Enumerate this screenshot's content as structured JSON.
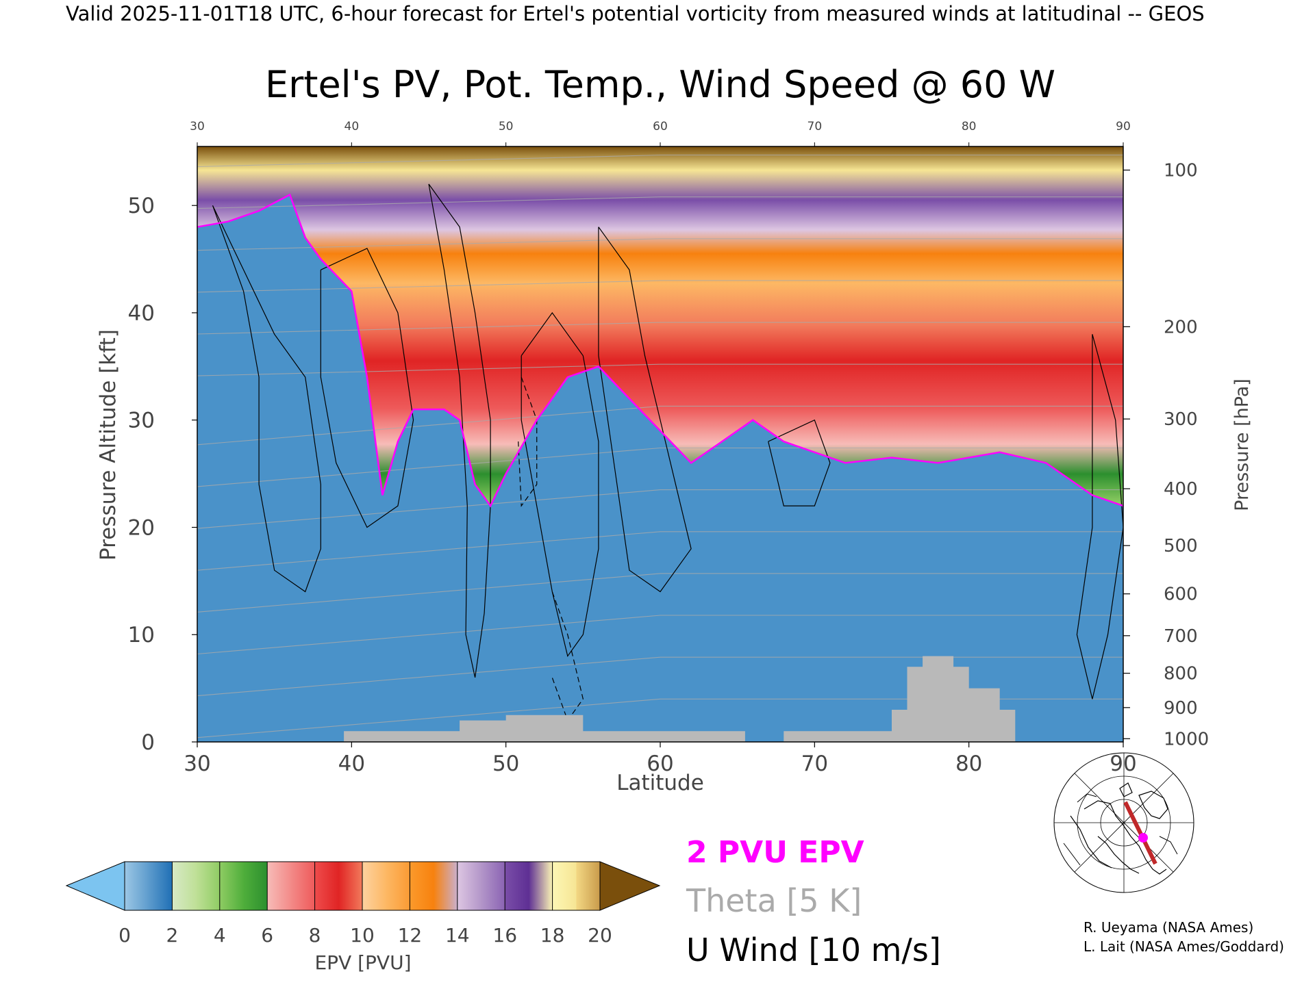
{
  "header": {
    "valid_line": "Valid 2025-11-01T18 UTC, 6-hour forecast for Ertel's potential vorticity from measured winds at latitudinal -- GEOS"
  },
  "chart_data": {
    "type": "heatmap",
    "title": "Ertel's PV, Pot. Temp., Wind Speed @ 60 W",
    "xlabel": "Latitude",
    "ylabel": "Pressure Altitude [kft]",
    "y2label": "Pressure [hPa]",
    "xlim": [
      30,
      90
    ],
    "ylim": [
      0,
      55.5
    ],
    "x_ticks": [
      "30",
      "40",
      "50",
      "60",
      "70",
      "80",
      "90"
    ],
    "x_top_ticks": [
      "30",
      "40",
      "50",
      "60",
      "70",
      "80",
      "90"
    ],
    "y_ticks": [
      "0",
      "10",
      "20",
      "30",
      "40",
      "50"
    ],
    "pressure_ticks": [
      {
        "label": "100",
        "kft": 53.3
      },
      {
        "label": "200",
        "kft": 38.7
      },
      {
        "label": "300",
        "kft": 30.1
      },
      {
        "label": "400",
        "kft": 23.6
      },
      {
        "label": "500",
        "kft": 18.3
      },
      {
        "label": "600",
        "kft": 13.8
      },
      {
        "label": "700",
        "kft": 9.9
      },
      {
        "label": "800",
        "kft": 6.4
      },
      {
        "label": "900",
        "kft": 3.2
      },
      {
        "label": "1000",
        "kft": 0.3
      }
    ],
    "tropopause_2pvu_kft": [
      {
        "lat": 30,
        "kft": 48
      },
      {
        "lat": 32,
        "kft": 48.5
      },
      {
        "lat": 34,
        "kft": 49.5
      },
      {
        "lat": 36,
        "kft": 51
      },
      {
        "lat": 37,
        "kft": 47
      },
      {
        "lat": 38,
        "kft": 45
      },
      {
        "lat": 40,
        "kft": 42
      },
      {
        "lat": 41,
        "kft": 34
      },
      {
        "lat": 42,
        "kft": 23
      },
      {
        "lat": 43,
        "kft": 28
      },
      {
        "lat": 44,
        "kft": 31
      },
      {
        "lat": 46,
        "kft": 31
      },
      {
        "lat": 47,
        "kft": 30
      },
      {
        "lat": 48,
        "kft": 24
      },
      {
        "lat": 49,
        "kft": 22
      },
      {
        "lat": 50,
        "kft": 25
      },
      {
        "lat": 52,
        "kft": 30
      },
      {
        "lat": 54,
        "kft": 34
      },
      {
        "lat": 56,
        "kft": 35
      },
      {
        "lat": 58,
        "kft": 32
      },
      {
        "lat": 60,
        "kft": 29
      },
      {
        "lat": 62,
        "kft": 26
      },
      {
        "lat": 64,
        "kft": 28
      },
      {
        "lat": 66,
        "kft": 30
      },
      {
        "lat": 68,
        "kft": 28
      },
      {
        "lat": 70,
        "kft": 27
      },
      {
        "lat": 72,
        "kft": 26
      },
      {
        "lat": 75,
        "kft": 26.5
      },
      {
        "lat": 78,
        "kft": 26
      },
      {
        "lat": 82,
        "kft": 27
      },
      {
        "lat": 85,
        "kft": 26
      },
      {
        "lat": 88,
        "kft": 23
      },
      {
        "lat": 90,
        "kft": 22
      }
    ],
    "terrain_kft": [
      {
        "lat": 39.5,
        "kft": 0
      },
      {
        "lat": 39.5,
        "kft": 1
      },
      {
        "lat": 47,
        "kft": 1
      },
      {
        "lat": 47,
        "kft": 2
      },
      {
        "lat": 50,
        "kft": 2
      },
      {
        "lat": 50,
        "kft": 2.5
      },
      {
        "lat": 55,
        "kft": 2.5
      },
      {
        "lat": 55,
        "kft": 1
      },
      {
        "lat": 65.5,
        "kft": 1
      },
      {
        "lat": 65.5,
        "kft": 0
      },
      {
        "lat": 68,
        "kft": 0
      },
      {
        "lat": 68,
        "kft": 1
      },
      {
        "lat": 75,
        "kft": 1
      },
      {
        "lat": 75,
        "kft": 3
      },
      {
        "lat": 76,
        "kft": 3
      },
      {
        "lat": 76,
        "kft": 7
      },
      {
        "lat": 77,
        "kft": 7
      },
      {
        "lat": 77,
        "kft": 8
      },
      {
        "lat": 79,
        "kft": 8
      },
      {
        "lat": 79,
        "kft": 7
      },
      {
        "lat": 80,
        "kft": 7
      },
      {
        "lat": 80,
        "kft": 5
      },
      {
        "lat": 82,
        "kft": 5
      },
      {
        "lat": 82,
        "kft": 3
      },
      {
        "lat": 83,
        "kft": 3
      },
      {
        "lat": 83,
        "kft": 0
      }
    ],
    "colorbar": {
      "label": "EPV [PVU]",
      "ticks": [
        "0",
        "2",
        "4",
        "6",
        "8",
        "10",
        "12",
        "14",
        "16",
        "18",
        "20"
      ],
      "under_color": "#7cc4f0",
      "over_color": "#7a4f0c",
      "bins": [
        {
          "from": 0,
          "to": 1,
          "colors": [
            "#9cc7e5",
            "#5e9ccd"
          ]
        },
        {
          "from": 1,
          "to": 2,
          "colors": [
            "#5e9ccd",
            "#1f6fb5"
          ]
        },
        {
          "from": 2,
          "to": 3,
          "colors": [
            "#d7e9c6",
            "#bfe097"
          ]
        },
        {
          "from": 3,
          "to": 4,
          "colors": [
            "#bfe097",
            "#8fcc63"
          ]
        },
        {
          "from": 4,
          "to": 5,
          "colors": [
            "#8fcc63",
            "#4fae3b"
          ]
        },
        {
          "from": 5,
          "to": 6,
          "colors": [
            "#4fae3b",
            "#2c8f2e"
          ]
        },
        {
          "from": 6,
          "to": 7,
          "colors": [
            "#f7bcb8",
            "#f38a88"
          ]
        },
        {
          "from": 7,
          "to": 8,
          "colors": [
            "#f38a88",
            "#ee5a5a"
          ]
        },
        {
          "from": 8,
          "to": 9,
          "colors": [
            "#ee4c4c",
            "#e02424"
          ]
        },
        {
          "from": 9,
          "to": 10,
          "colors": [
            "#e02424",
            "#f27b5c"
          ]
        },
        {
          "from": 10,
          "to": 11,
          "colors": [
            "#fdd2a0",
            "#fdb864"
          ]
        },
        {
          "from": 11,
          "to": 12,
          "colors": [
            "#fdb864",
            "#fa9a33"
          ]
        },
        {
          "from": 12,
          "to": 13,
          "colors": [
            "#fb9a2c",
            "#f7810e"
          ]
        },
        {
          "from": 13,
          "to": 14,
          "colors": [
            "#f7810e",
            "#c9b0cf"
          ]
        },
        {
          "from": 14,
          "to": 15,
          "colors": [
            "#ddc6e2",
            "#b396c9"
          ]
        },
        {
          "from": 15,
          "to": 16,
          "colors": [
            "#b396c9",
            "#8a63b3"
          ]
        },
        {
          "from": 16,
          "to": 17,
          "colors": [
            "#7a4ea8",
            "#5e2f94"
          ]
        },
        {
          "from": 17,
          "to": 18,
          "colors": [
            "#5e2f94",
            "#fdf7b5"
          ]
        },
        {
          "from": 18,
          "to": 19,
          "colors": [
            "#fdf7b5",
            "#f6e594"
          ]
        },
        {
          "from": 19,
          "to": 20,
          "colors": [
            "#f3d884",
            "#c89a4a"
          ]
        }
      ]
    },
    "contours": {
      "epv_2pvu_color": "#ff00ff",
      "theta_color": "#aaaaaa",
      "wind_color": "#000000",
      "terrain_color": "#b9b9b9"
    },
    "legend": {
      "epv_label": "2 PVU EPV",
      "theta_label": "Theta [5 K]",
      "wind_label": "U Wind [10 m/s]"
    }
  },
  "credits": {
    "line1": "R. Ueyama (NASA Ames)",
    "line2": "L. Lait (NASA Ames/Goddard)"
  },
  "inset_map": {
    "track_color": "#c0282a",
    "point_color": "#ff00ff"
  }
}
